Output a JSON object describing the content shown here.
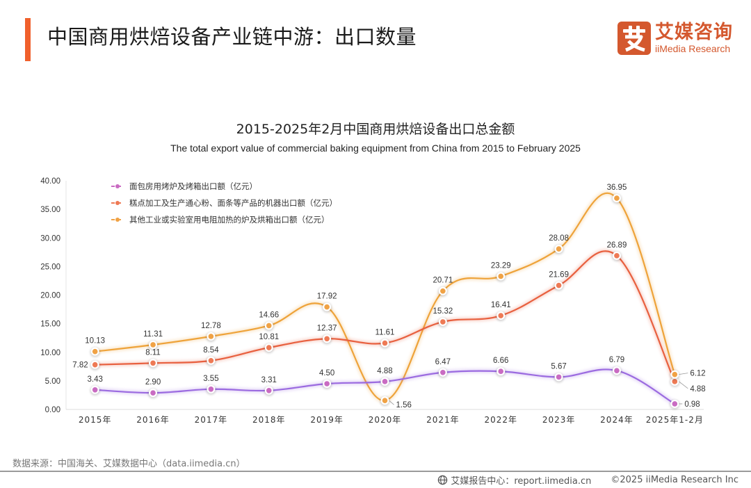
{
  "page": {
    "title": "中国商用烘焙设备产业链中游：出口数量",
    "accent_color": "#f0602c"
  },
  "logo": {
    "glyph": "艾",
    "name_cn": "艾媒咨询",
    "name_en": "iiMedia Research",
    "color": "#d4582e"
  },
  "source": "数据来源：中国海关、艾媒数据中心（data.iimedia.cn）",
  "footer": {
    "icon": "globe-icon",
    "report_center": "艾媒报告中心：report.iimedia.cn",
    "copyright": "©2025  iiMedia Research  Inc"
  },
  "chart_data": {
    "type": "line",
    "title": "2015-2025年2月中国商用烘焙设备出口总金额",
    "subtitle": "The total export value of commercial baking equipment from China from 2015 to February 2025",
    "xlabel": "",
    "ylabel": "",
    "ylim": [
      0,
      40
    ],
    "yticks": [
      "0.00",
      "5.00",
      "10.00",
      "15.00",
      "20.00",
      "25.00",
      "30.00",
      "35.00",
      "40.00"
    ],
    "grid": false,
    "smooth": true,
    "legend_position": "top-left",
    "categories": [
      "2015年",
      "2016年",
      "2017年",
      "2018年",
      "2019年",
      "2020年",
      "2021年",
      "2022年",
      "2023年",
      "2024年",
      "2025年1-2月"
    ],
    "series": [
      {
        "name": "面包房用烤炉及烤箱出口额（亿元）",
        "color": "#c96bc2",
        "line_color": "#9b6be0",
        "values": [
          3.43,
          2.9,
          3.55,
          3.31,
          4.5,
          4.88,
          6.47,
          6.66,
          5.67,
          6.79,
          0.98
        ]
      },
      {
        "name": "糕点加工及生产通心粉、面条等产品的机器出口额（亿元）",
        "color": "#ee7a55",
        "line_color": "#e8603f",
        "values": [
          7.82,
          8.11,
          8.54,
          10.81,
          12.37,
          11.61,
          15.32,
          16.41,
          21.69,
          26.89,
          4.88
        ]
      },
      {
        "name": "其他工业或实验室用电阻加热的炉及烘箱出口额（亿元）",
        "color": "#f0a245",
        "line_color": "#eea33a",
        "values": [
          10.13,
          11.31,
          12.78,
          14.66,
          17.92,
          1.56,
          20.71,
          23.29,
          28.08,
          36.95,
          6.12
        ]
      }
    ],
    "data_labels": [
      [
        "3.43",
        "2.90",
        "3.55",
        "3.31",
        "4.50",
        "4.88",
        "6.47",
        "6.66",
        "5.67",
        "6.79",
        "0.98"
      ],
      [
        "7.82",
        "8.11",
        "8.54",
        "10.81",
        "12.37",
        "11.61",
        "15.32",
        "16.41",
        "21.69",
        "26.89",
        "4.88"
      ],
      [
        "10.13",
        "11.31",
        "12.78",
        "14.66",
        "17.92",
        "1.56",
        "20.71",
        "23.29",
        "28.08",
        "36.95",
        "6.12"
      ]
    ]
  }
}
